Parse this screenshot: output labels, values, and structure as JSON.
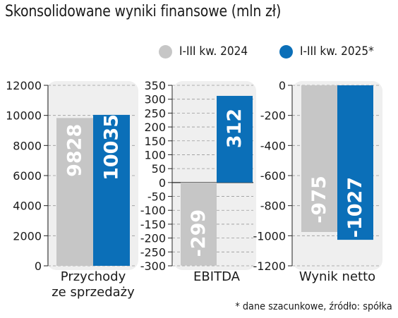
{
  "title": "Skonsolidowane wyniki finansowe (mln zł)",
  "footnote": "* dane szacunkowe, źródło: spółka",
  "colors": {
    "series_2024": "#c6c6c6",
    "series_2025": "#0b6fb8",
    "panel_bg": "#efefef"
  },
  "chart_data": [
    {
      "type": "bar",
      "category": "Przychody\nze sprzedaży",
      "ylim": [
        0,
        12000
      ],
      "yticks": [
        "0",
        "2000",
        "4000",
        "6000",
        "8000",
        "10000",
        "12000"
      ],
      "series": [
        {
          "name": "I-III kw. 2024",
          "values": [
            9828
          ],
          "label": "9828"
        },
        {
          "name": "I-III kw. 2025*",
          "values": [
            10035
          ],
          "label": "10035"
        }
      ]
    },
    {
      "type": "bar",
      "category": "EBITDA",
      "ylim": [
        -300,
        350
      ],
      "yticks": [
        "-300",
        "-250",
        "-200",
        "-150",
        "-100",
        "-50",
        "0",
        "50",
        "100",
        "150",
        "200",
        "250",
        "300",
        "350"
      ],
      "series": [
        {
          "name": "I-III kw. 2024",
          "values": [
            -299
          ],
          "label": "-299"
        },
        {
          "name": "I-III kw. 2025*",
          "values": [
            312
          ],
          "label": "312"
        }
      ]
    },
    {
      "type": "bar",
      "category": "Wynik netto",
      "ylim": [
        -1200,
        0
      ],
      "yticks": [
        "-1200",
        "-1000",
        "-800",
        "-600",
        "-400",
        "-200",
        "0"
      ],
      "series": [
        {
          "name": "I-III kw. 2024",
          "values": [
            -975
          ],
          "label": "-975"
        },
        {
          "name": "I-III kw. 2025*",
          "values": [
            -1027
          ],
          "label": "-1027"
        }
      ]
    }
  ],
  "legend": [
    {
      "label": "I-III kw. 2024",
      "color": "#c6c6c6"
    },
    {
      "label": "I-III kw. 2025*",
      "color": "#0b6fb8"
    }
  ]
}
